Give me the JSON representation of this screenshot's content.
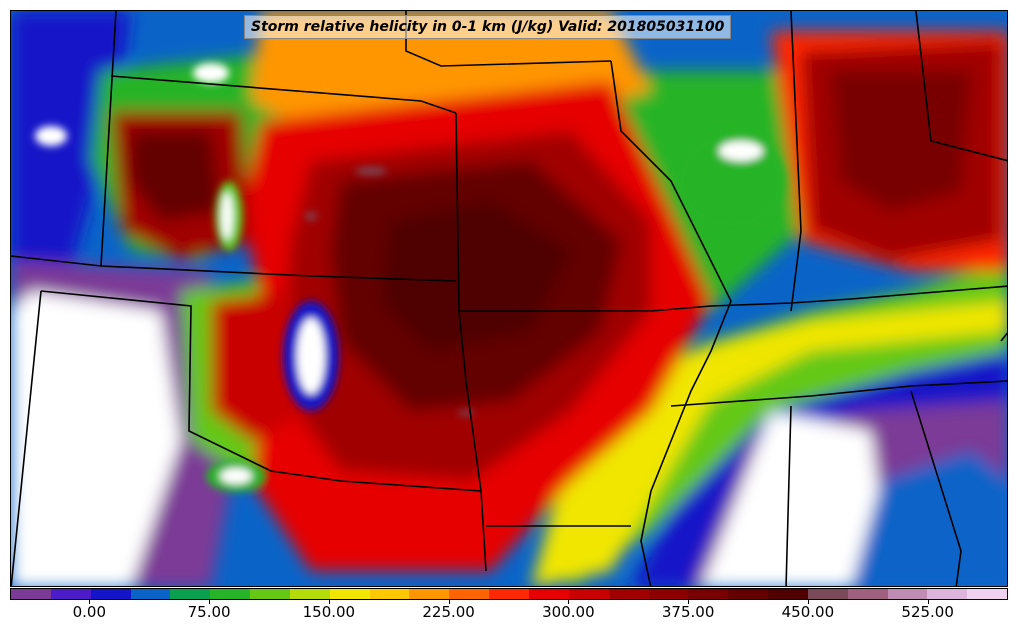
{
  "title": "Storm relative helicity in 0-1 km (J/kg) Valid: 201805031100",
  "colorbar": {
    "colors": [
      "#7b3a96",
      "#4b1cc8",
      "#1414c8",
      "#0a64c8",
      "#0aa050",
      "#28b428",
      "#64c814",
      "#b4dc0a",
      "#f0e600",
      "#ffc800",
      "#ff9600",
      "#ff6400",
      "#ff2800",
      "#e60000",
      "#c80000",
      "#a00000",
      "#8c0000",
      "#780000",
      "#640000",
      "#500000",
      "#7a4a5a",
      "#a06080",
      "#c08cb4",
      "#dcb4dc",
      "#f0d2f0"
    ],
    "ticks": [
      "0.00",
      "75.00",
      "150.00",
      "225.00",
      "300.00",
      "375.00",
      "450.00",
      "525.00"
    ]
  },
  "legend_colors": {
    "missing": "#ffffff",
    "low": "#7b3a96",
    "high": "#500000"
  }
}
